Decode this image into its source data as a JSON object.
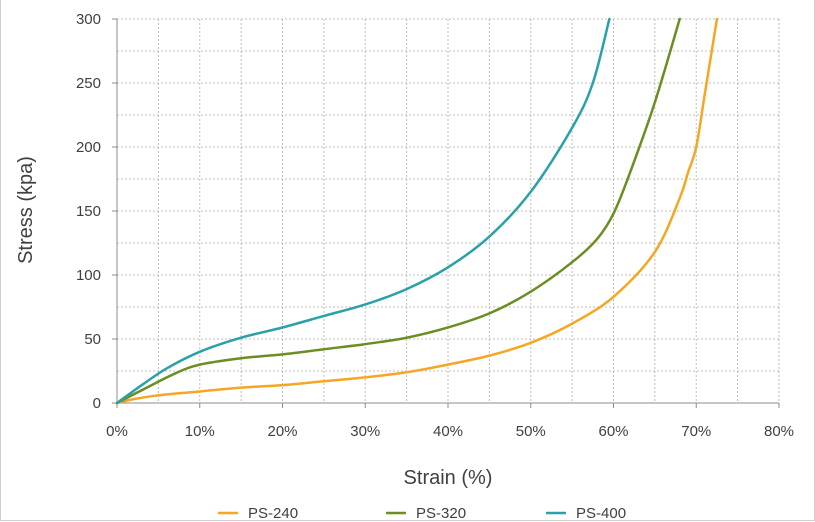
{
  "chart_data": {
    "type": "line",
    "xlabel": "Strain (%)",
    "ylabel": "Stress (kpa)",
    "xlim": [
      0,
      80
    ],
    "ylim": [
      0,
      300
    ],
    "x_ticks": [
      0,
      10,
      20,
      30,
      40,
      50,
      60,
      70,
      80
    ],
    "x_tick_labels": [
      "0%",
      "10%",
      "20%",
      "30%",
      "40%",
      "50%",
      "60%",
      "70%",
      "80%"
    ],
    "y_ticks": [
      0,
      50,
      100,
      150,
      200,
      250,
      300
    ],
    "y_tick_labels": [
      "0",
      "50",
      "100",
      "150",
      "200",
      "250",
      "300"
    ],
    "grid": "dotted",
    "legend_position": "bottom",
    "series": [
      {
        "name": "PS-240",
        "color": "#f5a623",
        "x": [
          0,
          2,
          5,
          10,
          15,
          20,
          25,
          30,
          35,
          40,
          45,
          50,
          55,
          60,
          65,
          68,
          69,
          70,
          71,
          72.5
        ],
        "y": [
          0,
          3,
          6,
          9,
          12,
          14,
          17,
          20,
          24,
          30,
          37,
          47,
          62,
          83,
          118,
          160,
          180,
          200,
          240,
          300
        ]
      },
      {
        "name": "PS-320",
        "color": "#6b8e23",
        "x": [
          0,
          3,
          7,
          10,
          15,
          20,
          25,
          30,
          35,
          40,
          45,
          50,
          55,
          58,
          60,
          62,
          65,
          68
        ],
        "y": [
          0,
          10,
          23,
          30,
          35,
          38,
          42,
          46,
          51,
          59,
          70,
          87,
          110,
          128,
          148,
          180,
          235,
          300
        ]
      },
      {
        "name": "PS-400",
        "color": "#2aa1a8",
        "x": [
          0,
          3,
          6,
          10,
          15,
          20,
          25,
          30,
          35,
          40,
          45,
          50,
          55,
          57.5,
          59.5
        ],
        "y": [
          0,
          14,
          27,
          40,
          51,
          59,
          68,
          77,
          89,
          106,
          130,
          165,
          215,
          250,
          300
        ]
      }
    ]
  }
}
